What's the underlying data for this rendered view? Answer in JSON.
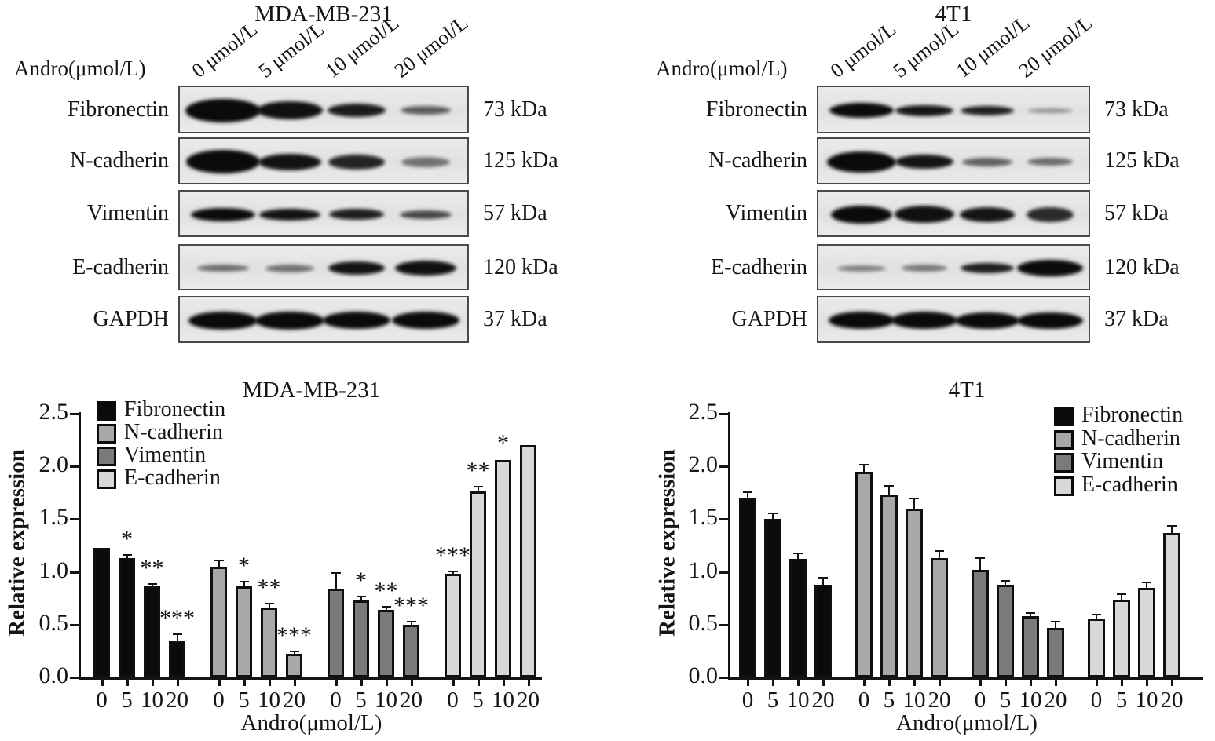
{
  "blot_panels": [
    {
      "title": "MDA-MB-231",
      "andro_label": "Andro(μmol/L)",
      "lane_labels": [
        "0 μmol/L",
        "5 μmol/L",
        "10 μmol/L",
        "20 μmol/L"
      ],
      "rows": [
        {
          "protein": "Fibronectin",
          "kda": "73 kDa",
          "bands": [
            [
              96,
              30,
              1
            ],
            [
              84,
              23,
              0.97
            ],
            [
              74,
              17,
              0.92
            ],
            [
              64,
              11,
              0.62
            ]
          ]
        },
        {
          "protein": "N-cadherin",
          "kda": "125 kDa",
          "bands": [
            [
              94,
              30,
              1
            ],
            [
              80,
              21,
              0.96
            ],
            [
              72,
              19,
              0.88
            ],
            [
              62,
              13,
              0.52
            ]
          ]
        },
        {
          "protein": "Vimentin",
          "kda": "57 kDa",
          "bands": [
            [
              82,
              17,
              1
            ],
            [
              78,
              15,
              0.96
            ],
            [
              70,
              14,
              0.9
            ],
            [
              66,
              11,
              0.72
            ]
          ]
        },
        {
          "protein": "E-cadherin",
          "kda": "120 kDa",
          "bands": [
            [
              66,
              9,
              0.55
            ],
            [
              62,
              10,
              0.52
            ],
            [
              72,
              17,
              0.95
            ],
            [
              78,
              19,
              0.97
            ]
          ]
        },
        {
          "protein": "GAPDH",
          "kda": "37 kDa",
          "bands": [
            [
              88,
              23,
              1
            ],
            [
              88,
              23,
              1
            ],
            [
              86,
              22,
              1
            ],
            [
              86,
              22,
              1
            ]
          ]
        }
      ]
    },
    {
      "title": "4T1",
      "andro_label": "Andro(μmol/L)",
      "lane_labels": [
        "0 μmol/L",
        "5 μmol/L",
        "10 μmol/L",
        "20 μmol/L"
      ],
      "rows": [
        {
          "protein": "Fibronectin",
          "kda": "73 kDa",
          "bands": [
            [
              82,
              19,
              1
            ],
            [
              74,
              14,
              0.95
            ],
            [
              68,
              12,
              0.9
            ],
            [
              58,
              6,
              0.38
            ]
          ]
        },
        {
          "protein": "N-cadherin",
          "kda": "125 kDa",
          "bands": [
            [
              88,
              27,
              1
            ],
            [
              74,
              18,
              0.95
            ],
            [
              64,
              11,
              0.6
            ],
            [
              58,
              10,
              0.55
            ]
          ]
        },
        {
          "protein": "Vimentin",
          "kda": "57 kDa",
          "bands": [
            [
              78,
              23,
              1
            ],
            [
              76,
              22,
              0.97
            ],
            [
              70,
              19,
              0.95
            ],
            [
              60,
              19,
              0.85
            ]
          ]
        },
        {
          "protein": "E-cadherin",
          "kda": "120 kDa",
          "bands": [
            [
              62,
              8,
              0.45
            ],
            [
              58,
              9,
              0.5
            ],
            [
              68,
              13,
              0.9
            ],
            [
              84,
              21,
              1
            ]
          ]
        },
        {
          "protein": "GAPDH",
          "kda": "37 kDa",
          "bands": [
            [
              84,
              22,
              1
            ],
            [
              84,
              22,
              1
            ],
            [
              82,
              21,
              1
            ],
            [
              84,
              21,
              1
            ]
          ]
        }
      ]
    }
  ],
  "chart_data": [
    {
      "type": "bar",
      "title": "MDA-MB-231",
      "xlabel": "Andro(μmol/L)",
      "ylabel": "Relative expression",
      "ylim": [
        0,
        2.5
      ],
      "yticks": [
        "0.0",
        "0.5",
        "1.0",
        "1.5",
        "2.0",
        "2.5"
      ],
      "categories": [
        "0",
        "5",
        "10",
        "20"
      ],
      "grid": false,
      "legend_position": "top-left",
      "series": [
        {
          "name": "Fibronectin",
          "color": "#0b0b0b",
          "values": [
            1.23,
            1.13,
            0.86,
            0.35
          ],
          "errors": [
            0,
            0.02,
            0.02,
            0.05
          ],
          "sig": [
            "",
            "*",
            "**",
            "***"
          ]
        },
        {
          "name": "N-cadherin",
          "color": "#a8a8a8",
          "values": [
            1.05,
            0.86,
            0.66,
            0.22
          ],
          "errors": [
            0.05,
            0.04,
            0.03,
            0.02
          ],
          "sig": [
            "",
            "*",
            "**",
            "***"
          ]
        },
        {
          "name": "Vimentin",
          "color": "#7a7a7a",
          "values": [
            0.84,
            0.73,
            0.64,
            0.5
          ],
          "errors": [
            0.14,
            0.03,
            0.02,
            0.02
          ],
          "sig": [
            "",
            "*",
            "**",
            "***"
          ]
        },
        {
          "name": "E-cadherin",
          "color": "#d8d8d8",
          "values": [
            0.98,
            1.76,
            2.06,
            2.2
          ],
          "errors": [
            0.02,
            0.04,
            0,
            0
          ],
          "sig": [
            "***",
            "**",
            "*",
            ""
          ]
        }
      ]
    },
    {
      "type": "bar",
      "title": "4T1",
      "xlabel": "Andro(μmol/L)",
      "ylabel": "Relative expression",
      "ylim": [
        0,
        2.5
      ],
      "yticks": [
        "0.0",
        "0.5",
        "1.0",
        "1.5",
        "2.0",
        "2.5"
      ],
      "categories": [
        "0",
        "5",
        "10",
        "20"
      ],
      "grid": false,
      "legend_position": "top-right",
      "series": [
        {
          "name": "Fibronectin",
          "color": "#0b0b0b",
          "values": [
            1.7,
            1.5,
            1.12,
            0.88
          ],
          "errors": [
            0.05,
            0.05,
            0.05,
            0.06
          ],
          "sig": [
            "",
            "",
            "",
            ""
          ]
        },
        {
          "name": "N-cadherin",
          "color": "#a8a8a8",
          "values": [
            1.95,
            1.73,
            1.6,
            1.13
          ],
          "errors": [
            0.06,
            0.08,
            0.09,
            0.06
          ],
          "sig": [
            "",
            "",
            "",
            ""
          ]
        },
        {
          "name": "Vimentin",
          "color": "#7a7a7a",
          "values": [
            1.02,
            0.88,
            0.58,
            0.47
          ],
          "errors": [
            0.1,
            0.03,
            0.02,
            0.05
          ],
          "sig": [
            "",
            "",
            "",
            ""
          ]
        },
        {
          "name": "E-cadherin",
          "color": "#d8d8d8",
          "values": [
            0.56,
            0.74,
            0.85,
            1.37
          ],
          "errors": [
            0.03,
            0.04,
            0.04,
            0.06
          ],
          "sig": [
            "",
            "",
            "",
            ""
          ]
        }
      ]
    }
  ]
}
